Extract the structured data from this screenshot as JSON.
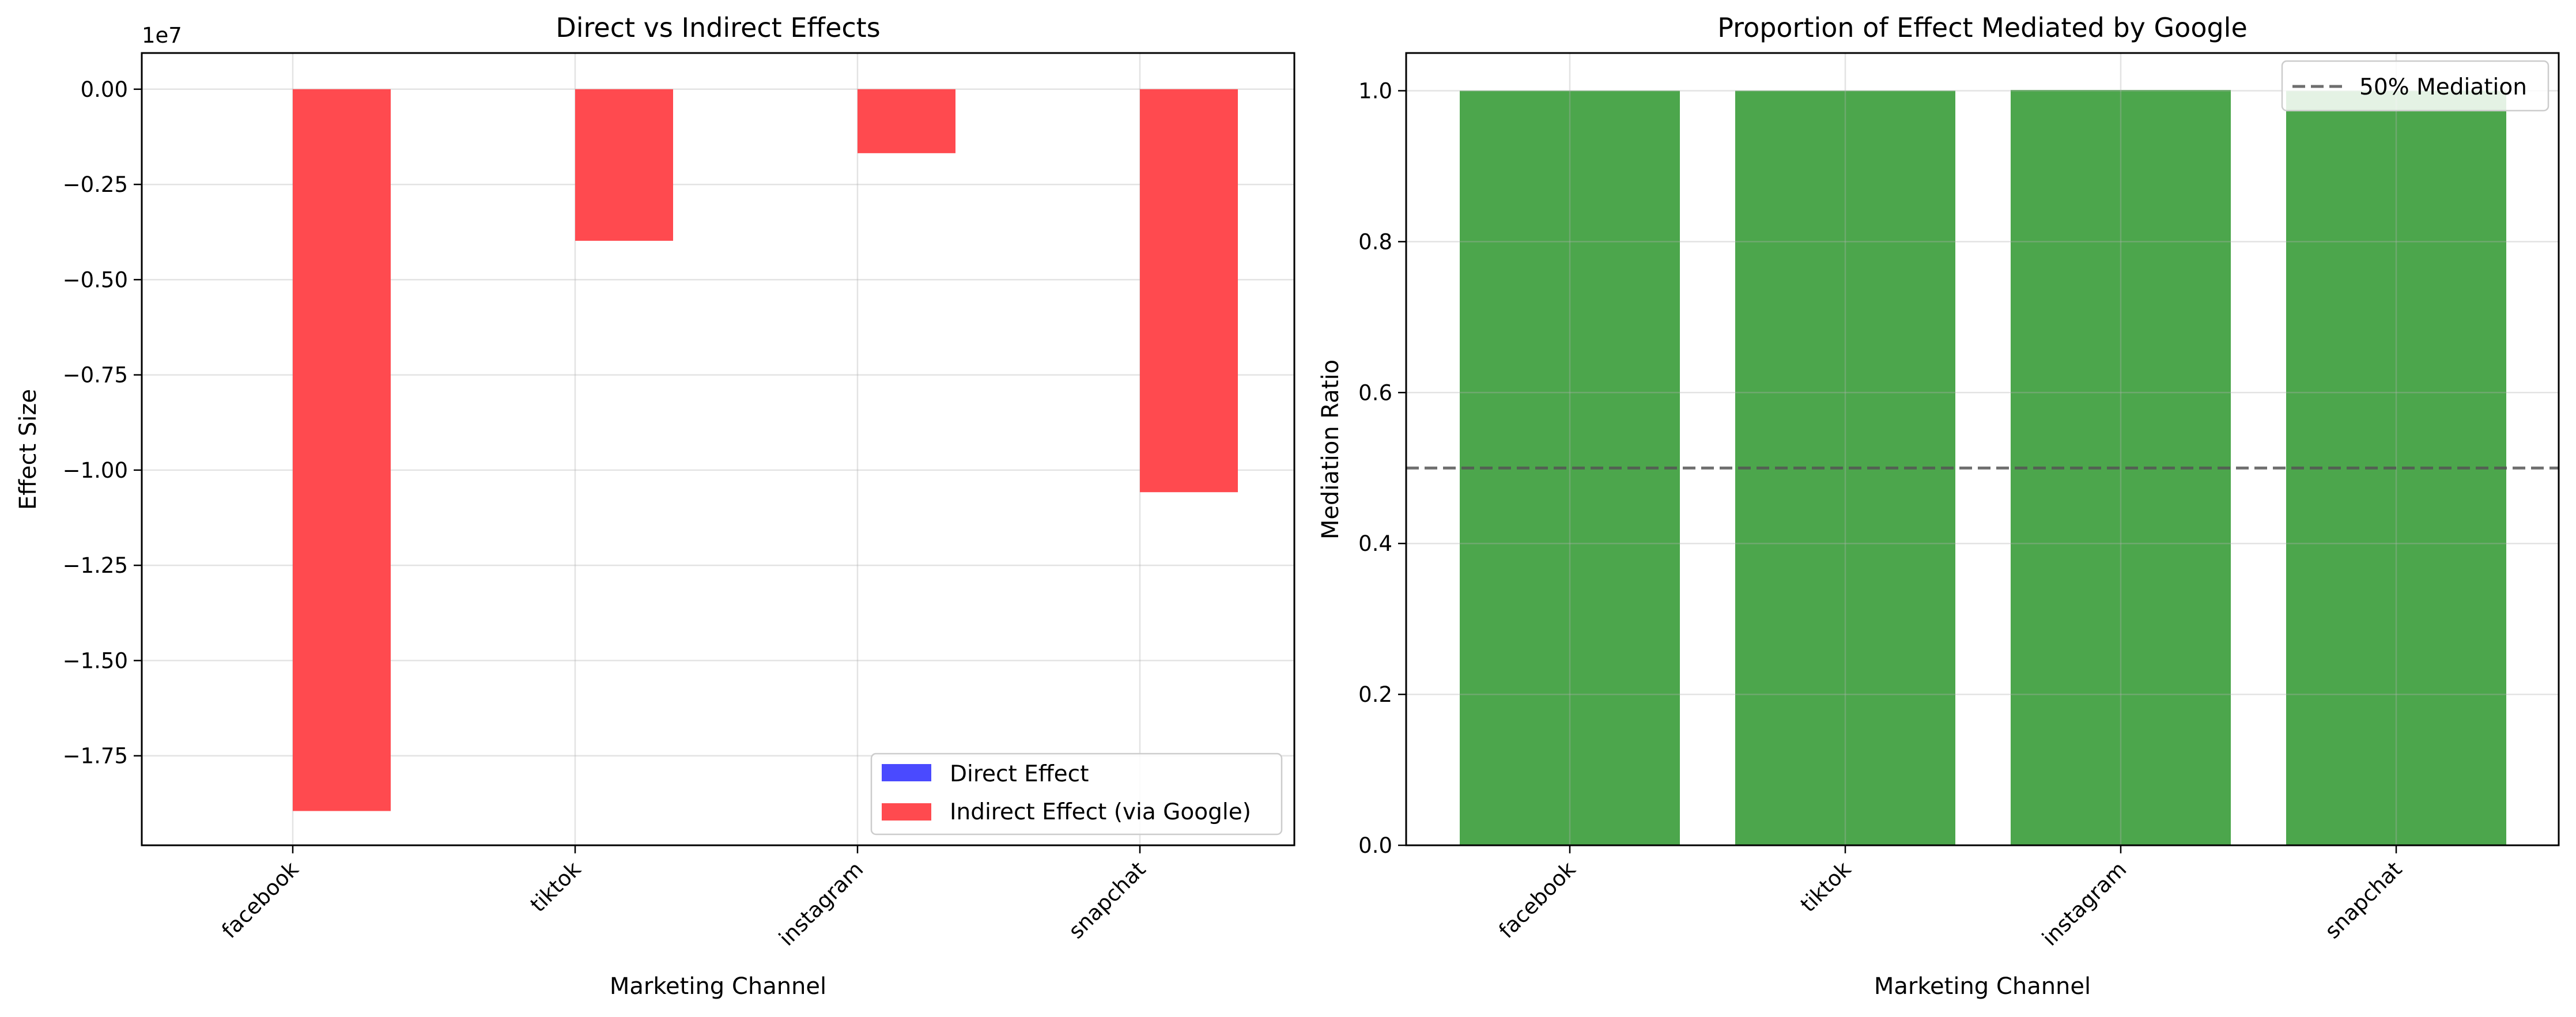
{
  "chart_data": [
    {
      "type": "bar",
      "title": "Direct vs Indirect Effects",
      "xlabel": "Marketing Channel",
      "ylabel": "Effect Size",
      "offset_text": "1e7",
      "categories": [
        "facebook",
        "tiktok",
        "instagram",
        "snapchat"
      ],
      "series": [
        {
          "name": "Direct Effect",
          "color": "#4a4aff",
          "values": [
            0,
            0,
            0,
            0
          ]
        },
        {
          "name": "Indirect Effect (via Google)",
          "color": "#ff4a4f",
          "values": [
            -18950000,
            -3980000,
            -1680000,
            -10580000
          ]
        }
      ],
      "ylim": [
        -19850000,
        950000
      ],
      "yticks": [
        0,
        -2500000,
        -5000000,
        -7500000,
        -10000000,
        -12500000,
        -15000000,
        -17500000
      ],
      "ytick_labels": [
        "0.00",
        "−0.25",
        "−0.50",
        "−0.75",
        "−1.00",
        "−1.25",
        "−1.50",
        "−1.75"
      ],
      "grid": true,
      "legend_position": "lower-right"
    },
    {
      "type": "bar",
      "title": "Proportion of Effect Mediated by Google",
      "xlabel": "Marketing Channel",
      "ylabel": "Mediation Ratio",
      "categories": [
        "facebook",
        "tiktok",
        "instagram",
        "snapchat"
      ],
      "series": [
        {
          "name": "",
          "color": "#4ca64c",
          "values": [
            1.0,
            1.0,
            1.001,
            1.0
          ]
        }
      ],
      "reference_line": {
        "name": "50% Mediation",
        "value": 0.5,
        "color": "#555555"
      },
      "ylim": [
        0,
        1.05
      ],
      "yticks": [
        0,
        0.2,
        0.4,
        0.6,
        0.8,
        1.0
      ],
      "ytick_labels": [
        "0.0",
        "0.2",
        "0.4",
        "0.6",
        "0.8",
        "1.0"
      ],
      "grid": true,
      "legend_position": "upper-right"
    }
  ]
}
